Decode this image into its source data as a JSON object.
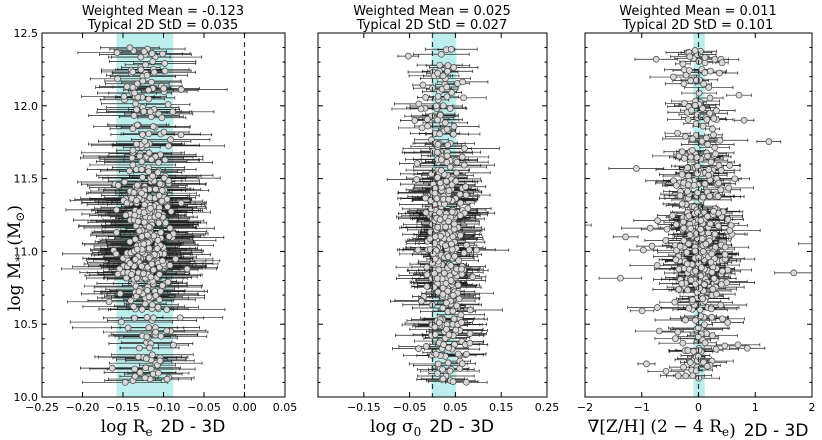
{
  "figure": {
    "ylabel": "log M",
    "ylabel_sub": "*",
    "ylabel_unit": "(M",
    "ylabel_unit_end": ")",
    "ylabel_sun": "⊙"
  },
  "chart_data": [
    {
      "type": "scatter",
      "title": "Weighted Mean = -0.123",
      "subtitle": "Typical 2D StD = 0.035",
      "xlabel_math": "log R",
      "xlabel_math_sub": "e",
      "xlabel_text": "2D - 3D",
      "xlim": [
        -0.25,
        0.05
      ],
      "ylim": [
        10.0,
        12.5
      ],
      "xticks": [
        -0.25,
        -0.2,
        -0.15,
        -0.1,
        -0.05,
        0.0,
        0.05
      ],
      "xtick_labels": [
        "−0.25",
        "−0.20",
        "−0.15",
        "−0.10",
        "−0.05",
        "0.00",
        "0.05"
      ],
      "yticks": [
        10.0,
        10.5,
        11.0,
        11.5,
        12.0,
        12.5
      ],
      "ytick_labels": [
        "10.0",
        "10.5",
        "11.0",
        "11.5",
        "12.0",
        "12.5"
      ],
      "band": [
        -0.158,
        -0.088
      ],
      "zero_line": 0.0,
      "weighted_mean": -0.123,
      "typical_std": 0.035,
      "spread": 0.016,
      "xerr": 0.04,
      "n_points": 480,
      "seed": 11
    },
    {
      "type": "scatter",
      "title": "Weighted Mean = 0.025",
      "subtitle": "Typical 2D StD = 0.027",
      "xlabel_math": "log σ",
      "xlabel_math_sub": "0",
      "xlabel_text": "2D - 3D",
      "xlim": [
        -0.25,
        0.25
      ],
      "ylim": [
        10.0,
        12.5
      ],
      "xticks": [
        -0.15,
        -0.05,
        0.05,
        0.15,
        0.25
      ],
      "xtick_labels": [
        "−0.15",
        "−0.05",
        "0.05",
        "0.15",
        "0.25"
      ],
      "yticks": [
        10.0,
        10.5,
        11.0,
        11.5,
        12.0,
        12.5
      ],
      "ytick_labels": [
        "",
        "",
        "",
        "",
        "",
        ""
      ],
      "band": [
        -0.002,
        0.052
      ],
      "zero_line": 0.0,
      "weighted_mean": 0.025,
      "typical_std": 0.027,
      "spread": 0.022,
      "xerr": 0.045,
      "n_points": 480,
      "seed": 23
    },
    {
      "type": "scatter",
      "title": "Weighted Mean = 0.011",
      "subtitle": "Typical 2D StD = 0.101",
      "xlabel_math": "∇[Z/H] (2 − 4 R",
      "xlabel_math_sub": "e",
      "xlabel_math_end": ")",
      "xlabel_text": "2D - 3D",
      "xlim": [
        -2,
        2
      ],
      "ylim": [
        10.0,
        12.5
      ],
      "xticks": [
        -2,
        -1,
        0,
        1,
        2
      ],
      "xtick_labels": [
        "−2",
        "−1",
        "0",
        "1",
        "2"
      ],
      "yticks": [
        10.0,
        10.5,
        11.0,
        11.5,
        12.0,
        12.5
      ],
      "ytick_labels": [
        "",
        "",
        "",
        "",
        "",
        ""
      ],
      "band": [
        -0.09,
        0.11
      ],
      "zero_line": 0.0,
      "weighted_mean": 0.011,
      "typical_std": 0.101,
      "spread": 0.2,
      "xerr": 0.3,
      "n_points": 480,
      "seed": 37
    }
  ]
}
